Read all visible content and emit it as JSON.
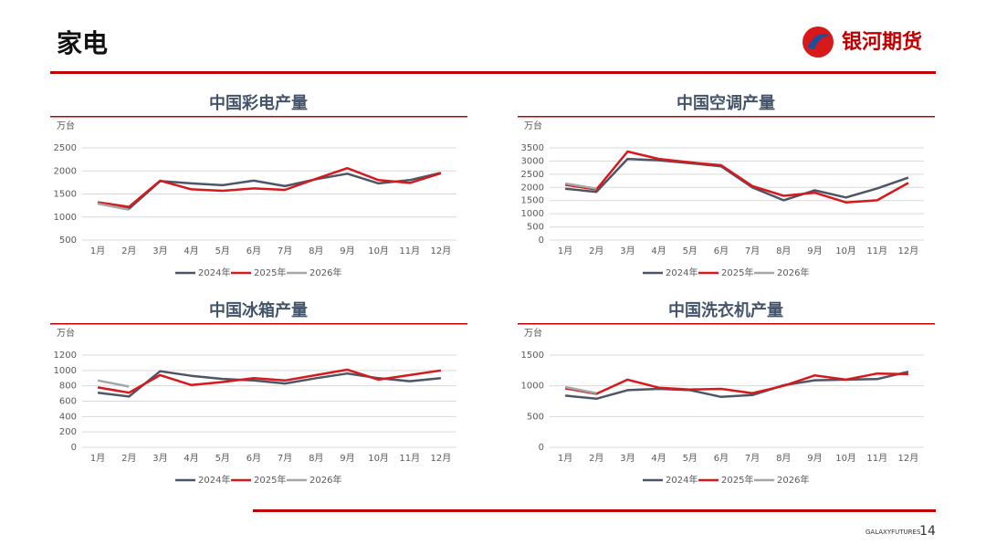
{
  "header": {
    "title": "家电",
    "logo": "银河期货"
  },
  "footer": {
    "brand": "GALAXYFUTURES",
    "page": "14"
  },
  "chart_data": [
    {
      "type": "line",
      "title": "中国彩电产量",
      "y_label": "万台",
      "categories": [
        "1月",
        "2月",
        "3月",
        "4月",
        "5月",
        "6月",
        "7月",
        "8月",
        "9月",
        "10月",
        "11月",
        "12月"
      ],
      "ylim": [
        500,
        2500
      ],
      "yticks": [
        500,
        1000,
        1500,
        2000,
        2500
      ],
      "grid": true,
      "legend": "bottom",
      "series": [
        {
          "name": "2024年",
          "color": "#4d5666",
          "values": [
            1300,
            1180,
            1780,
            1730,
            1690,
            1790,
            1670,
            1820,
            1940,
            1730,
            1800,
            1960
          ]
        },
        {
          "name": "2025年",
          "color": "#d7191c",
          "values": [
            1320,
            1220,
            1790,
            1600,
            1570,
            1620,
            1590,
            1830,
            2060,
            1800,
            1740,
            1950
          ]
        },
        {
          "name": "2026年",
          "color": "#a6a6a6",
          "values": [
            1290,
            1160,
            null,
            null,
            null,
            null,
            null,
            null,
            null,
            null,
            null,
            null
          ]
        }
      ]
    },
    {
      "type": "line",
      "title": "中国空调产量",
      "y_label": "万台",
      "categories": [
        "1月",
        "2月",
        "3月",
        "4月",
        "5月",
        "6月",
        "7月",
        "8月",
        "9月",
        "10月",
        "11月",
        "12月"
      ],
      "ylim": [
        0,
        3500
      ],
      "yticks": [
        0,
        500,
        1000,
        1500,
        2000,
        2500,
        3000,
        3500
      ],
      "grid": true,
      "legend": "bottom",
      "series": [
        {
          "name": "2024年",
          "color": "#4d5666",
          "values": [
            1950,
            1830,
            3080,
            3030,
            2920,
            2800,
            2000,
            1510,
            1890,
            1620,
            1960,
            2370
          ]
        },
        {
          "name": "2025年",
          "color": "#d7191c",
          "values": [
            2100,
            1920,
            3360,
            3080,
            2950,
            2840,
            2050,
            1680,
            1800,
            1430,
            1510,
            2170
          ]
        },
        {
          "name": "2026年",
          "color": "#a6a6a6",
          "values": [
            2150,
            1950,
            null,
            null,
            null,
            null,
            null,
            null,
            null,
            null,
            null,
            null
          ]
        }
      ]
    },
    {
      "type": "line",
      "title": "中国冰箱产量",
      "y_label": "万台",
      "categories": [
        "1月",
        "2月",
        "3月",
        "4月",
        "5月",
        "6月",
        "7月",
        "8月",
        "9月",
        "10月",
        "11月",
        "12月"
      ],
      "ylim": [
        0,
        1200
      ],
      "yticks": [
        0,
        200,
        400,
        600,
        800,
        1000,
        1200
      ],
      "grid": true,
      "legend": "bottom",
      "series": [
        {
          "name": "2024年",
          "color": "#4d5666",
          "values": [
            710,
            660,
            990,
            930,
            890,
            870,
            830,
            900,
            960,
            900,
            860,
            900
          ]
        },
        {
          "name": "2025年",
          "color": "#d7191c",
          "values": [
            780,
            710,
            940,
            810,
            850,
            900,
            870,
            940,
            1010,
            880,
            940,
            1000
          ]
        },
        {
          "name": "2026年",
          "color": "#a6a6a6",
          "values": [
            870,
            790,
            null,
            null,
            null,
            null,
            null,
            null,
            null,
            null,
            null,
            null
          ]
        }
      ]
    },
    {
      "type": "line",
      "title": "中国洗衣机产量",
      "y_label": "万台",
      "categories": [
        "1月",
        "2月",
        "3月",
        "4月",
        "5月",
        "6月",
        "7月",
        "8月",
        "9月",
        "10月",
        "11月",
        "12月"
      ],
      "ylim": [
        0,
        1500
      ],
      "yticks": [
        0,
        500,
        1000,
        1500
      ],
      "grid": true,
      "legend": "bottom",
      "series": [
        {
          "name": "2024年",
          "color": "#4d5666",
          "values": [
            840,
            790,
            930,
            950,
            930,
            820,
            850,
            1010,
            1090,
            1100,
            1110,
            1230
          ]
        },
        {
          "name": "2025年",
          "color": "#d7191c",
          "values": [
            960,
            870,
            1100,
            970,
            940,
            950,
            880,
            1000,
            1170,
            1100,
            1200,
            1190
          ]
        },
        {
          "name": "2026年",
          "color": "#a6a6a6",
          "values": [
            980,
            880,
            null,
            null,
            null,
            null,
            null,
            null,
            null,
            null,
            null,
            null
          ]
        }
      ]
    }
  ]
}
